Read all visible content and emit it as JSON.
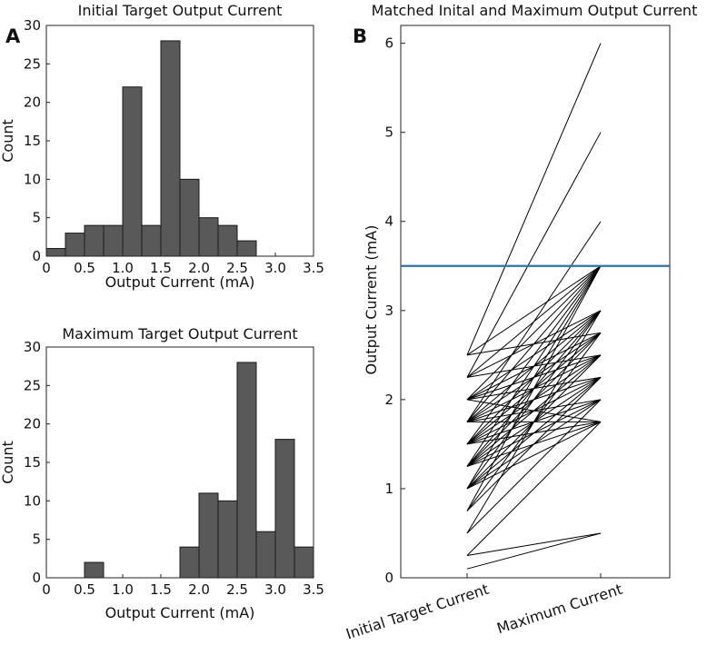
{
  "chart_data": [
    {
      "type": "bar",
      "panel": "A",
      "title": "Initial Target Output Current",
      "xlabel": "Output Current (mA)",
      "ylabel": "Count",
      "bin_width": 0.25,
      "bin_starts": [
        0,
        0.25,
        0.5,
        0.75,
        1.0,
        1.25,
        1.5,
        1.75,
        2.0,
        2.25,
        2.5
      ],
      "values": [
        1,
        3,
        4,
        4,
        22,
        4,
        28,
        10,
        5,
        4,
        2
      ],
      "xlim": [
        0,
        3.5
      ],
      "ylim": [
        0,
        30
      ],
      "xticks": [
        "0",
        "0.5",
        "1.0",
        "1.5",
        "2.0",
        "2.5",
        "3.0",
        "3.5"
      ],
      "yticks": [
        "0",
        "5",
        "10",
        "15",
        "20",
        "25",
        "30"
      ]
    },
    {
      "type": "bar",
      "title": "Maximum Target Output Current",
      "xlabel": "Output Current (mA)",
      "ylabel": "Count",
      "bin_width": 0.25,
      "bin_starts": [
        0.5,
        1.75,
        2.0,
        2.25,
        2.5,
        2.75,
        3.0,
        3.25
      ],
      "values": [
        2,
        4,
        11,
        10,
        28,
        6,
        18,
        4
      ],
      "xlim": [
        0,
        3.5
      ],
      "ylim": [
        0,
        30
      ],
      "xticks": [
        "0",
        "0.5",
        "1.0",
        "1.5",
        "2.0",
        "2.5",
        "3.0",
        "3.5"
      ],
      "yticks": [
        "0",
        "5",
        "10",
        "15",
        "20",
        "25",
        "30"
      ]
    },
    {
      "type": "line",
      "panel": "B",
      "title": "Matched Inital and Maximum Output Current",
      "ylabel": "Output Current (mA)",
      "categories": [
        "Initial Target Current",
        "Maximum Current"
      ],
      "ylim": [
        0,
        6.2
      ],
      "yticks": [
        "0",
        "1",
        "2",
        "3",
        "4",
        "5",
        "6"
      ],
      "reference_line": 3.5,
      "pairs": [
        [
          2.5,
          6
        ],
        [
          2.25,
          5
        ],
        [
          1.75,
          4
        ],
        [
          2.5,
          3.5
        ],
        [
          2.25,
          3.5
        ],
        [
          2.0,
          3.5
        ],
        [
          1.75,
          3.5
        ],
        [
          1.5,
          3.5
        ],
        [
          1.25,
          3.5
        ],
        [
          1.0,
          3.5
        ],
        [
          0.75,
          3.5
        ],
        [
          2.25,
          3.0
        ],
        [
          2.0,
          3.0
        ],
        [
          1.75,
          3.0
        ],
        [
          1.5,
          3.0
        ],
        [
          1.25,
          3.0
        ],
        [
          1.0,
          3.0
        ],
        [
          0.5,
          3.0
        ],
        [
          2.5,
          2.75
        ],
        [
          2.0,
          2.75
        ],
        [
          1.75,
          2.75
        ],
        [
          1.5,
          2.75
        ],
        [
          1.25,
          2.75
        ],
        [
          0.75,
          2.75
        ],
        [
          2.25,
          2.5
        ],
        [
          2.0,
          2.5
        ],
        [
          1.75,
          2.5
        ],
        [
          1.5,
          2.5
        ],
        [
          1.25,
          2.5
        ],
        [
          1.0,
          2.5
        ],
        [
          2.0,
          2.25
        ],
        [
          1.75,
          2.25
        ],
        [
          1.5,
          2.25
        ],
        [
          1.25,
          2.25
        ],
        [
          1.0,
          2.25
        ],
        [
          0.75,
          2.25
        ],
        [
          1.75,
          2.0
        ],
        [
          1.5,
          2.0
        ],
        [
          1.25,
          2.0
        ],
        [
          1.0,
          2.0
        ],
        [
          0.5,
          2.0
        ],
        [
          2.0,
          1.75
        ],
        [
          1.75,
          1.75
        ],
        [
          1.5,
          1.75
        ],
        [
          1.25,
          1.75
        ],
        [
          1.0,
          1.75
        ],
        [
          0.25,
          1.75
        ],
        [
          0.25,
          0.5
        ],
        [
          0.1,
          0.5
        ]
      ]
    }
  ]
}
